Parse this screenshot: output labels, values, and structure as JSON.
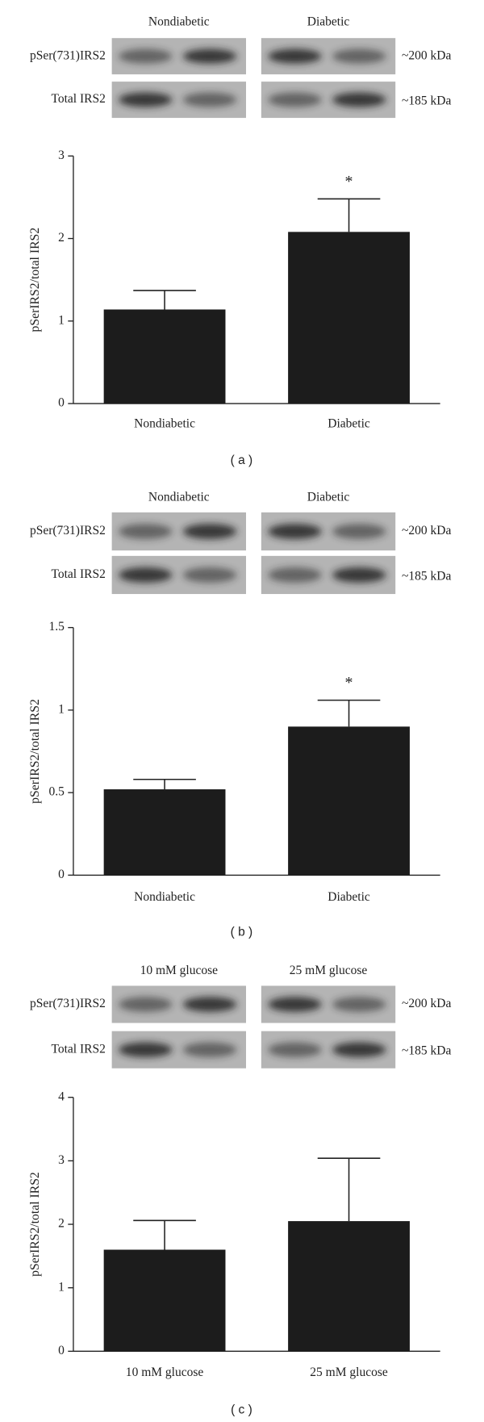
{
  "chart_data": [
    {
      "type": "bar",
      "panel_label": "( a )",
      "ylabel": "pSerIRS2/total IRS2",
      "categories": [
        "Nondiabetic",
        "Diabetic"
      ],
      "values": [
        1.14,
        2.08
      ],
      "errors": [
        0.23,
        0.4
      ],
      "significance": [
        null,
        "*"
      ],
      "color": "#1c1c1c",
      "ylim": [
        0,
        3
      ],
      "yticks": [
        0,
        1,
        2,
        3
      ],
      "blot": {
        "lanes": [
          "Nondiabetic",
          "Diabetic"
        ],
        "rows": [
          "pSer(731)IRS2",
          "Total IRS2"
        ],
        "sizes": [
          "~200 kDa",
          "~185 kDa"
        ]
      }
    },
    {
      "type": "bar",
      "panel_label": "( b )",
      "ylabel": "pSerIRS2/total IRS2",
      "categories": [
        "Nondiabetic",
        "Diabetic"
      ],
      "values": [
        0.52,
        0.9
      ],
      "errors": [
        0.06,
        0.16
      ],
      "significance": [
        null,
        "*"
      ],
      "color": "#1c1c1c",
      "ylim": [
        0,
        1.5
      ],
      "yticks": [
        0,
        0.5,
        1,
        1.5
      ],
      "blot": {
        "lanes": [
          "Nondiabetic",
          "Diabetic"
        ],
        "rows": [
          "pSer(731)IRS2",
          "Total IRS2"
        ],
        "sizes": [
          "~200 kDa",
          "~185 kDa"
        ]
      }
    },
    {
      "type": "bar",
      "panel_label": "( c )",
      "ylabel": "pSerIRS2/total IRS2",
      "categories": [
        "10 mM glucose",
        "25 mM glucose"
      ],
      "values": [
        1.6,
        2.05
      ],
      "errors": [
        0.46,
        0.99
      ],
      "significance": [
        null,
        null
      ],
      "color": "#1c1c1c",
      "ylim": [
        0,
        4
      ],
      "yticks": [
        0,
        1,
        2,
        3,
        4
      ],
      "blot": {
        "lanes": [
          "10 mM glucose",
          "25 mM glucose"
        ],
        "rows": [
          "pSer(731)IRS2",
          "Total IRS2"
        ],
        "sizes": [
          "~200 kDa",
          "~185 kDa"
        ]
      }
    }
  ]
}
